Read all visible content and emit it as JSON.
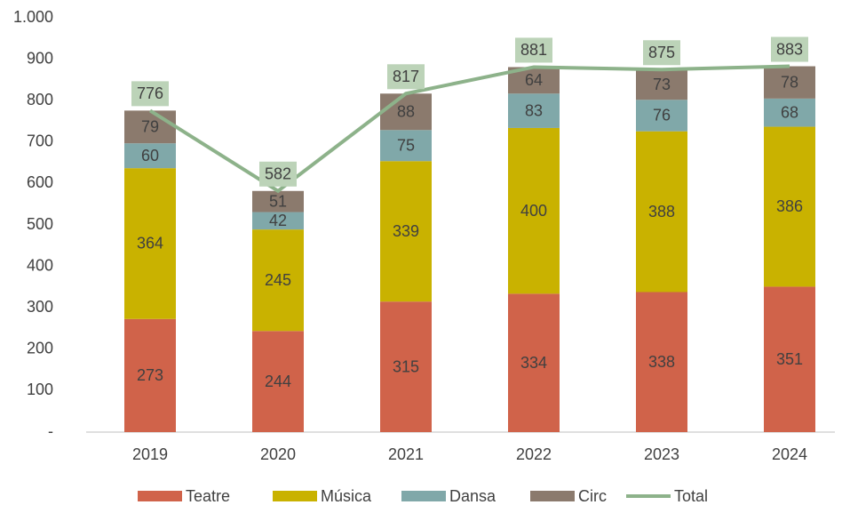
{
  "chart_data": {
    "type": "stacked-bar-line",
    "categories": [
      "2019",
      "2020",
      "2021",
      "2022",
      "2023",
      "2024"
    ],
    "series": [
      {
        "name": "Teatre",
        "type": "bar",
        "color": "#d0634a",
        "values": [
          273,
          244,
          315,
          334,
          338,
          351
        ]
      },
      {
        "name": "Música",
        "type": "bar",
        "color": "#c9b200",
        "values": [
          364,
          245,
          339,
          400,
          388,
          386
        ]
      },
      {
        "name": "Dansa",
        "type": "bar",
        "color": "#80a8a9",
        "values": [
          60,
          42,
          75,
          83,
          76,
          68
        ]
      },
      {
        "name": "Circ",
        "type": "bar",
        "color": "#8b7a6d",
        "values": [
          79,
          51,
          88,
          64,
          73,
          78
        ]
      },
      {
        "name": "Total",
        "type": "line",
        "color": "#8db28a",
        "values": [
          776,
          582,
          817,
          881,
          875,
          883
        ]
      }
    ],
    "ylim": [
      0,
      1000
    ],
    "yticks": [
      {
        "value": 0,
        "label": "-"
      },
      100,
      200,
      300,
      400,
      500,
      600,
      700,
      800,
      900,
      {
        "value": 1000,
        "label": "1.000"
      }
    ],
    "legend": "bottom"
  }
}
